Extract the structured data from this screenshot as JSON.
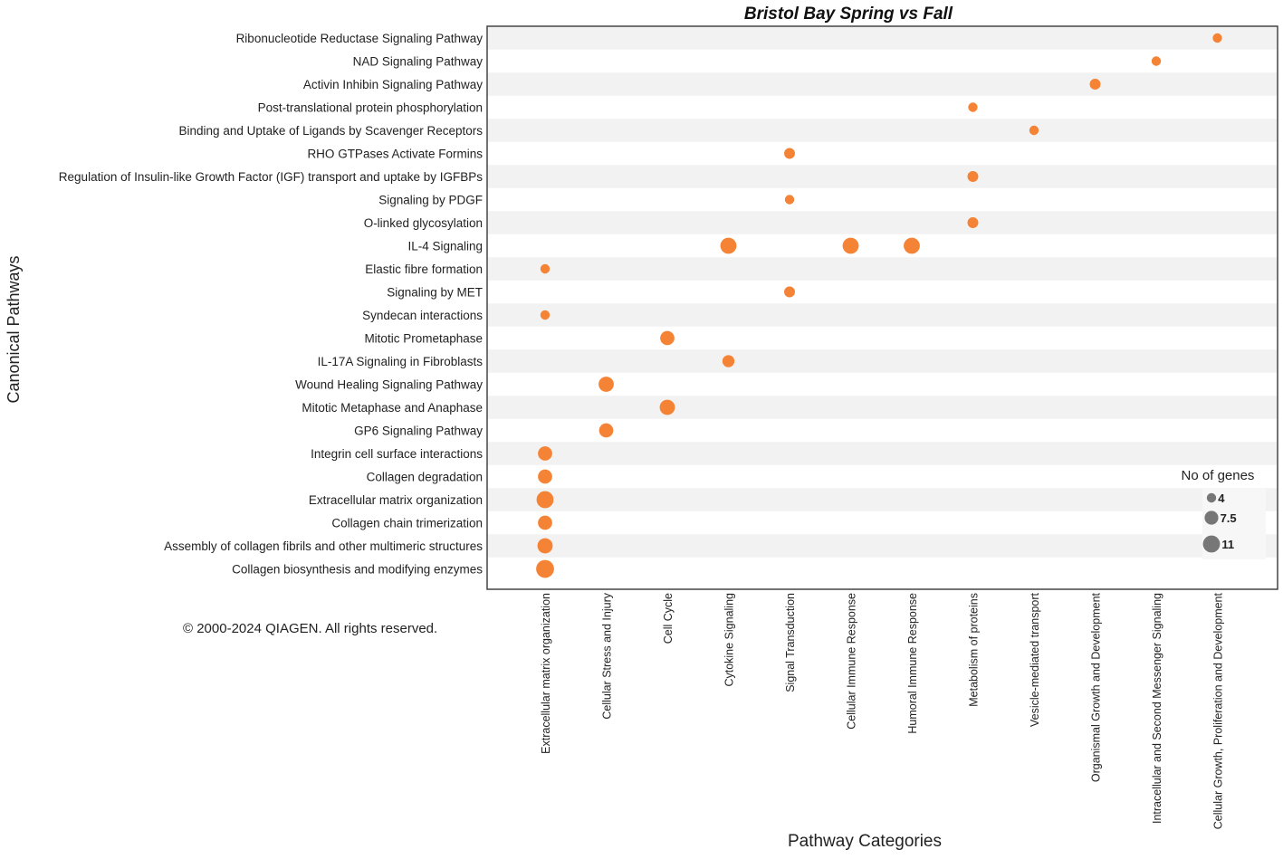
{
  "chart_data": {
    "type": "bubble",
    "title": "Bristol Bay Spring vs Fall",
    "ylabel": "Canonical Pathways",
    "xlabel": "Pathway Categories",
    "colors": {
      "bubble": "#f47c2a",
      "legend_bubble": "#777777",
      "stripe": "#f2f2f2",
      "frame": "#444444"
    },
    "categories": [
      "Extracellular matrix organization",
      "Cellular Stress and Injury",
      "Cell Cycle",
      "Cytokine Signaling",
      "Signal Transduction",
      "Cellular Immune Response",
      "Humoral Immune Response",
      "Metabolism of proteins",
      "Vesicle-mediated transport",
      "Organismal Growth and Development",
      "Intracellular and Second Messenger Signaling",
      "Cellular Growth, Proliferation and Development"
    ],
    "pathways": [
      "Ribonucleotide Reductase Signaling Pathway",
      "NAD Signaling Pathway",
      "Activin Inhibin Signaling Pathway",
      "Post-translational protein phosphorylation",
      "Binding and Uptake of Ligands by Scavenger Receptors",
      "RHO GTPases Activate Formins",
      "Regulation of Insulin-like Growth Factor (IGF) transport and uptake by IGFBPs",
      "Signaling by PDGF",
      "O-linked glycosylation",
      "IL-4 Signaling",
      "Elastic fibre formation",
      "Signaling by MET",
      "Syndecan interactions",
      "Mitotic Prometaphase",
      "IL-17A Signaling in Fibroblasts",
      "Wound Healing Signaling Pathway",
      "Mitotic Metaphase and Anaphase",
      "GP6 Signaling Pathway",
      "Integrin cell surface interactions",
      "Collagen degradation",
      "Extracellular matrix organization",
      "Collagen chain trimerization",
      "Assembly of collagen fibrils and other multimeric structures",
      "Collagen biosynthesis and modifying enzymes"
    ],
    "points": [
      {
        "pathway": "Ribonucleotide Reductase Signaling Pathway",
        "category": "Cellular Growth, Proliferation and Development",
        "genes": 4
      },
      {
        "pathway": "NAD Signaling Pathway",
        "category": "Intracellular and Second Messenger Signaling",
        "genes": 4
      },
      {
        "pathway": "Activin Inhibin Signaling Pathway",
        "category": "Organismal Growth and Development",
        "genes": 5
      },
      {
        "pathway": "Post-translational protein phosphorylation",
        "category": "Metabolism of proteins",
        "genes": 4
      },
      {
        "pathway": "Binding and Uptake of Ligands by Scavenger Receptors",
        "category": "Vesicle-mediated transport",
        "genes": 4
      },
      {
        "pathway": "RHO GTPases Activate Formins",
        "category": "Signal Transduction",
        "genes": 5
      },
      {
        "pathway": "Regulation of Insulin-like Growth Factor (IGF) transport and uptake by IGFBPs",
        "category": "Metabolism of proteins",
        "genes": 5
      },
      {
        "pathway": "Signaling by PDGF",
        "category": "Signal Transduction",
        "genes": 4
      },
      {
        "pathway": "O-linked glycosylation",
        "category": "Metabolism of proteins",
        "genes": 5
      },
      {
        "pathway": "IL-4 Signaling",
        "category": "Cytokine Signaling",
        "genes": 10
      },
      {
        "pathway": "IL-4 Signaling",
        "category": "Cellular Immune Response",
        "genes": 10
      },
      {
        "pathway": "IL-4 Signaling",
        "category": "Humoral Immune Response",
        "genes": 10
      },
      {
        "pathway": "Elastic fibre formation",
        "category": "Extracellular matrix organization",
        "genes": 4
      },
      {
        "pathway": "Signaling by MET",
        "category": "Signal Transduction",
        "genes": 5
      },
      {
        "pathway": "Syndecan interactions",
        "category": "Extracellular matrix organization",
        "genes": 4
      },
      {
        "pathway": "Mitotic Prometaphase",
        "category": "Cell Cycle",
        "genes": 8
      },
      {
        "pathway": "IL-17A Signaling in Fibroblasts",
        "category": "Cytokine Signaling",
        "genes": 6
      },
      {
        "pathway": "Wound Healing Signaling Pathway",
        "category": "Cellular Stress and Injury",
        "genes": 9
      },
      {
        "pathway": "Mitotic Metaphase and Anaphase",
        "category": "Cell Cycle",
        "genes": 9
      },
      {
        "pathway": "GP6 Signaling Pathway",
        "category": "Cellular Stress and Injury",
        "genes": 8
      },
      {
        "pathway": "Integrin cell surface interactions",
        "category": "Extracellular matrix organization",
        "genes": 8
      },
      {
        "pathway": "Collagen degradation",
        "category": "Extracellular matrix organization",
        "genes": 8
      },
      {
        "pathway": "Extracellular matrix organization",
        "category": "Extracellular matrix organization",
        "genes": 11
      },
      {
        "pathway": "Collagen chain trimerization",
        "category": "Extracellular matrix organization",
        "genes": 8
      },
      {
        "pathway": "Assembly of collagen fibrils and other multimeric structures",
        "category": "Extracellular matrix organization",
        "genes": 9
      },
      {
        "pathway": "Collagen biosynthesis and modifying enzymes",
        "category": "Extracellular matrix organization",
        "genes": 12
      }
    ],
    "legend": {
      "title": "No of genes",
      "entries": [
        {
          "value": 4,
          "label": "4"
        },
        {
          "value": 7.5,
          "label": "7.5"
        },
        {
          "value": 11,
          "label": "11"
        }
      ],
      "position": "bottom-right"
    }
  },
  "copyright": "© 2000-2024 QIAGEN. All rights reserved."
}
